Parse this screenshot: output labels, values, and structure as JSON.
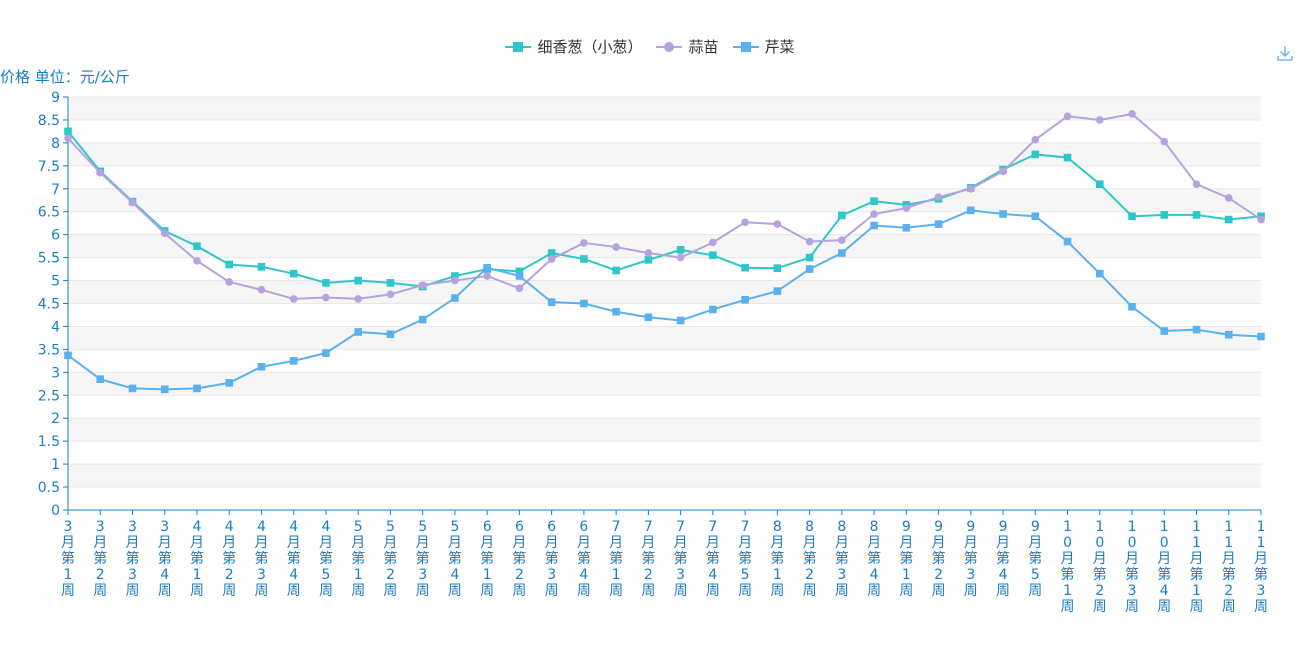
{
  "chart_data": {
    "type": "line",
    "ylabel": "价格 单位：元/公斤",
    "ylim": [
      0,
      9
    ],
    "yticks": [
      "0",
      "0.5",
      "1",
      "1.5",
      "2",
      "2.5",
      "3",
      "3.5",
      "4",
      "4.5",
      "5",
      "5.5",
      "6",
      "6.5",
      "7",
      "7.5",
      "8",
      "8.5",
      "9"
    ],
    "grid": true,
    "legend_position": "top-center",
    "categories": [
      "3月第1周",
      "3月第2周",
      "3月第3周",
      "3月第4周",
      "4月第1周",
      "4月第2周",
      "4月第3周",
      "4月第4周",
      "4月第5周",
      "5月第1周",
      "5月第2周",
      "5月第3周",
      "5月第4周",
      "6月第1周",
      "6月第2周",
      "6月第3周",
      "6月第4周",
      "7月第1周",
      "7月第2周",
      "7月第3周",
      "7月第4周",
      "7月第5周",
      "8月第1周",
      "8月第2周",
      "8月第3周",
      "8月第4周",
      "9月第1周",
      "9月第2周",
      "9月第3周",
      "9月第4周",
      "9月第5周",
      "10月第1周",
      "10月第2周",
      "10月第3周",
      "10月第4周",
      "11月第1周",
      "11月第2周",
      "11月第3周"
    ],
    "series": [
      {
        "name": "细香葱（小葱）",
        "color": "#2ec7c9",
        "marker": "square",
        "values": [
          8.25,
          7.38,
          6.72,
          6.08,
          5.75,
          5.35,
          5.3,
          5.15,
          4.95,
          5.0,
          4.95,
          4.87,
          5.1,
          5.25,
          5.2,
          5.6,
          5.47,
          5.22,
          5.45,
          5.67,
          5.55,
          5.28,
          5.27,
          5.5,
          6.42,
          6.73,
          6.65,
          6.78,
          7.02,
          7.42,
          7.75,
          7.68,
          7.1,
          6.4,
          6.43,
          6.43,
          6.33,
          6.4
        ]
      },
      {
        "name": "蒜苗",
        "color": "#b6a2de",
        "marker": "circle",
        "values": [
          8.1,
          7.35,
          6.7,
          6.03,
          5.43,
          4.97,
          4.8,
          4.6,
          4.63,
          4.6,
          4.7,
          4.9,
          5.0,
          5.1,
          4.83,
          5.47,
          5.82,
          5.73,
          5.6,
          5.5,
          5.83,
          6.27,
          6.23,
          5.85,
          5.88,
          6.45,
          6.58,
          6.82,
          7.0,
          7.38,
          8.07,
          8.58,
          8.5,
          8.63,
          8.03,
          7.1,
          6.8,
          6.33
        ]
      },
      {
        "name": "芹菜",
        "color": "#5ab1ef",
        "marker": "square",
        "values": [
          3.37,
          2.85,
          2.65,
          2.63,
          2.65,
          2.77,
          3.12,
          3.25,
          3.42,
          3.88,
          3.83,
          4.15,
          4.62,
          5.28,
          5.1,
          4.53,
          4.5,
          4.32,
          4.2,
          4.13,
          4.37,
          4.58,
          4.77,
          5.25,
          5.6,
          6.2,
          6.15,
          6.23,
          6.53,
          6.45,
          6.4,
          5.85,
          5.15,
          4.43,
          3.9,
          3.93,
          3.82,
          3.78
        ]
      }
    ]
  },
  "toolbar": {
    "download_icon": "download-icon"
  }
}
